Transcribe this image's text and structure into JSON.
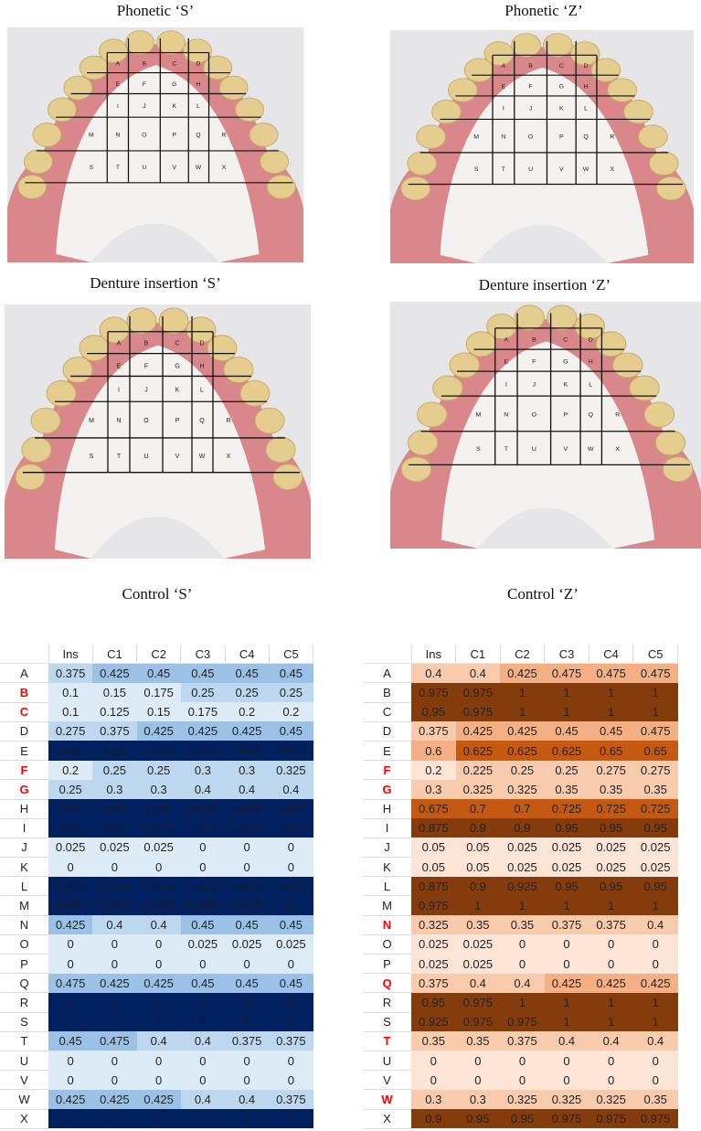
{
  "panels": [
    {
      "title": "Phonetic ‘S’"
    },
    {
      "title": "Phonetic ‘Z’"
    },
    {
      "title": "Denture insertion ‘S’"
    },
    {
      "title": "Denture insertion ‘Z’"
    }
  ],
  "grid_letters": [
    "A",
    "B",
    "C",
    "D",
    "E",
    "F",
    "G",
    "H",
    "I",
    "J",
    "K",
    "L",
    "M",
    "N",
    "O",
    "P",
    "Q",
    "R",
    "S",
    "T",
    "U",
    "V",
    "W",
    "X"
  ],
  "tables": [
    {
      "title": "Control ‘S’",
      "columns": [
        "Ins",
        "C1",
        "C2",
        "C3",
        "C4",
        "C5"
      ],
      "colors": {
        "lightest": "#ddebf7",
        "light": "#bdd7ee",
        "medium": "#9bc2e6",
        "dark": "#002060"
      },
      "rows": [
        {
          "label": "A",
          "highlight": false,
          "values": [
            0.375,
            0.425,
            0.45,
            0.45,
            0.45,
            0.45
          ]
        },
        {
          "label": "B",
          "highlight": true,
          "values": [
            0.1,
            0.15,
            0.175,
            0.25,
            0.25,
            0.25
          ]
        },
        {
          "label": "C",
          "highlight": true,
          "values": [
            0.1,
            0.125,
            0.15,
            0.175,
            0.2,
            0.2
          ]
        },
        {
          "label": "D",
          "highlight": false,
          "values": [
            0.275,
            0.375,
            0.425,
            0.425,
            0.425,
            0.45
          ]
        },
        {
          "label": "E",
          "highlight": false,
          "values": [
            0.95,
            0.95,
            0.975,
            0.975,
            0.975,
            0.975
          ]
        },
        {
          "label": "F",
          "highlight": true,
          "values": [
            0.2,
            0.25,
            0.25,
            0.3,
            0.3,
            0.325
          ]
        },
        {
          "label": "G",
          "highlight": true,
          "values": [
            0.25,
            0.3,
            0.3,
            0.4,
            0.4,
            0.4
          ]
        },
        {
          "label": "H",
          "highlight": false,
          "values": [
            0.95,
            0.95,
            0.95,
            0.975,
            0.975,
            0.975
          ]
        },
        {
          "label": "I",
          "highlight": false,
          "values": [
            0.95,
            0.95,
            0.975,
            0.975,
            0.975,
            0.975
          ]
        },
        {
          "label": "J",
          "highlight": false,
          "values": [
            0.025,
            0.025,
            0.025,
            0,
            0,
            0
          ]
        },
        {
          "label": "K",
          "highlight": false,
          "values": [
            0,
            0,
            0,
            0,
            0,
            0
          ]
        },
        {
          "label": "L",
          "highlight": false,
          "values": [
            0.975,
            0.975,
            0.975,
            0.975,
            0.975,
            0.975
          ]
        },
        {
          "label": "M",
          "highlight": false,
          "values": [
            0.975,
            0.975,
            0.975,
            0.975,
            0.975,
            1
          ]
        },
        {
          "label": "N",
          "highlight": false,
          "values": [
            0.425,
            0.4,
            0.4,
            0.45,
            0.45,
            0.45
          ]
        },
        {
          "label": "O",
          "highlight": false,
          "values": [
            0,
            0,
            0,
            0.025,
            0.025,
            0.025
          ]
        },
        {
          "label": "P",
          "highlight": false,
          "values": [
            0,
            0,
            0,
            0,
            0,
            0
          ]
        },
        {
          "label": "Q",
          "highlight": false,
          "values": [
            0.475,
            0.425,
            0.425,
            0.45,
            0.45,
            0.45
          ]
        },
        {
          "label": "R",
          "highlight": false,
          "values": [
            1,
            1,
            1,
            1,
            1,
            1
          ]
        },
        {
          "label": "S",
          "highlight": false,
          "values": [
            1,
            1,
            1,
            1,
            1,
            1
          ]
        },
        {
          "label": "T",
          "highlight": false,
          "values": [
            0.45,
            0.475,
            0.4,
            0.4,
            0.375,
            0.375
          ]
        },
        {
          "label": "U",
          "highlight": false,
          "values": [
            0,
            0,
            0,
            0,
            0,
            0
          ]
        },
        {
          "label": "V",
          "highlight": false,
          "values": [
            0,
            0,
            0,
            0,
            0,
            0
          ]
        },
        {
          "label": "W",
          "highlight": false,
          "values": [
            0.425,
            0.425,
            0.425,
            0.4,
            0.4,
            0.375
          ]
        },
        {
          "label": "X",
          "highlight": false,
          "values": [
            1,
            1,
            1,
            1,
            1,
            1
          ]
        }
      ]
    },
    {
      "title": "Control ‘Z’",
      "columns": [
        "Ins",
        "C1",
        "C2",
        "C3",
        "C4",
        "C5"
      ],
      "colors": {
        "lightest": "#fce4d6",
        "light": "#f8cbad",
        "medium": "#f4b084",
        "strong": "#c65911",
        "dark": "#843c0c"
      },
      "rows": [
        {
          "label": "A",
          "highlight": false,
          "values": [
            0.4,
            0.4,
            0.425,
            0.475,
            0.475,
            0.475
          ]
        },
        {
          "label": "B",
          "highlight": false,
          "values": [
            0.975,
            0.975,
            1,
            1,
            1,
            1
          ]
        },
        {
          "label": "C",
          "highlight": false,
          "values": [
            0.95,
            0.975,
            1,
            1,
            1,
            1
          ]
        },
        {
          "label": "D",
          "highlight": false,
          "values": [
            0.375,
            0.425,
            0.425,
            0.45,
            0.45,
            0.475
          ]
        },
        {
          "label": "E",
          "highlight": false,
          "values": [
            0.6,
            0.625,
            0.625,
            0.625,
            0.65,
            0.65
          ]
        },
        {
          "label": "F",
          "highlight": true,
          "values": [
            0.2,
            0.225,
            0.25,
            0.25,
            0.275,
            0.275
          ]
        },
        {
          "label": "G",
          "highlight": true,
          "values": [
            0.3,
            0.325,
            0.325,
            0.35,
            0.35,
            0.35
          ]
        },
        {
          "label": "H",
          "highlight": false,
          "values": [
            0.675,
            0.7,
            0.7,
            0.725,
            0.725,
            0.725
          ]
        },
        {
          "label": "I",
          "highlight": false,
          "values": [
            0.875,
            0.9,
            0.9,
            0.95,
            0.95,
            0.95
          ]
        },
        {
          "label": "J",
          "highlight": false,
          "values": [
            0.05,
            0.05,
            0.025,
            0.025,
            0.025,
            0.025
          ]
        },
        {
          "label": "K",
          "highlight": false,
          "values": [
            0.05,
            0.05,
            0.025,
            0.025,
            0.025,
            0.025
          ]
        },
        {
          "label": "L",
          "highlight": false,
          "values": [
            0.875,
            0.9,
            0.925,
            0.95,
            0.95,
            0.95
          ]
        },
        {
          "label": "M",
          "highlight": false,
          "values": [
            0.975,
            1,
            1,
            1,
            1,
            1
          ]
        },
        {
          "label": "N",
          "highlight": true,
          "values": [
            0.325,
            0.35,
            0.35,
            0.375,
            0.375,
            0.4
          ]
        },
        {
          "label": "O",
          "highlight": false,
          "values": [
            0.025,
            0.025,
            0,
            0,
            0,
            0
          ]
        },
        {
          "label": "P",
          "highlight": false,
          "values": [
            0.025,
            0.025,
            0,
            0,
            0,
            0
          ]
        },
        {
          "label": "Q",
          "highlight": true,
          "values": [
            0.375,
            0.4,
            0.4,
            0.425,
            0.425,
            0.425
          ]
        },
        {
          "label": "R",
          "highlight": false,
          "values": [
            0.95,
            0.975,
            1,
            1,
            1,
            1
          ]
        },
        {
          "label": "S",
          "highlight": false,
          "values": [
            0.925,
            0.975,
            0.975,
            1,
            1,
            1
          ]
        },
        {
          "label": "T",
          "highlight": true,
          "values": [
            0.35,
            0.35,
            0.375,
            0.4,
            0.4,
            0.4
          ]
        },
        {
          "label": "U",
          "highlight": false,
          "values": [
            0,
            0,
            0,
            0,
            0,
            0
          ]
        },
        {
          "label": "V",
          "highlight": false,
          "values": [
            0,
            0,
            0,
            0,
            0,
            0
          ]
        },
        {
          "label": "W",
          "highlight": true,
          "values": [
            0.3,
            0.3,
            0.325,
            0.325,
            0.325,
            0.35
          ]
        },
        {
          "label": "X",
          "highlight": false,
          "values": [
            0.9,
            0.95,
            0.95,
            0.975,
            0.975,
            0.975
          ]
        }
      ]
    }
  ]
}
